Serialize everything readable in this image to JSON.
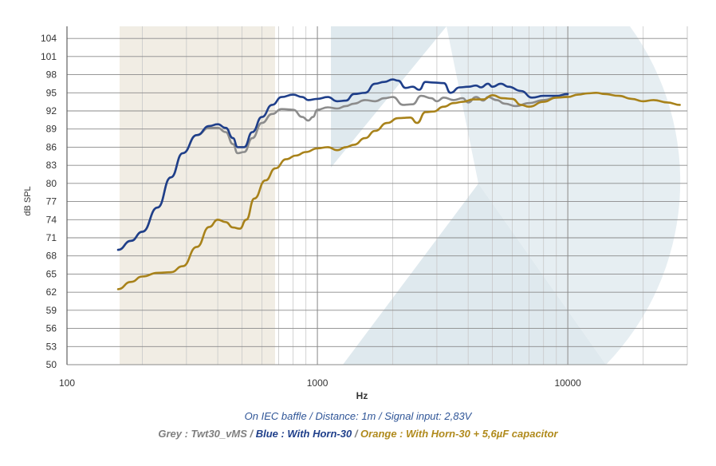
{
  "chart_data": {
    "type": "line",
    "title": "",
    "xlabel": "Hz",
    "ylabel": "dB SPL",
    "x_scale": "log",
    "xlim": [
      100,
      30000
    ],
    "ylim": [
      50,
      106
    ],
    "x_ticks": [
      "100",
      "1000",
      "10000"
    ],
    "x_tick_values": [
      100,
      1000,
      10000
    ],
    "y_ticks": [
      50,
      53,
      56,
      59,
      62,
      65,
      68,
      71,
      74,
      77,
      80,
      83,
      86,
      89,
      92,
      95,
      98,
      101,
      104
    ],
    "grid": true,
    "legend": "none",
    "colors": {
      "grey": "#8c8c8c",
      "blue": "#1f3f8a",
      "orange": "#a8821a",
      "grid": "#c8c8c8",
      "axis": "#555555"
    },
    "series": [
      {
        "color": "#8c8c8c",
        "points": [
          [
            160,
            69
          ],
          [
            180,
            70.5
          ],
          [
            200,
            72
          ],
          [
            230,
            76
          ],
          [
            260,
            81
          ],
          [
            290,
            85
          ],
          [
            330,
            88
          ],
          [
            370,
            89.2
          ],
          [
            400,
            89.2
          ],
          [
            430,
            88.5
          ],
          [
            460,
            86.5
          ],
          [
            480,
            85
          ],
          [
            510,
            85.2
          ],
          [
            550,
            87.5
          ],
          [
            600,
            90
          ],
          [
            660,
            91.5
          ],
          [
            720,
            92.3
          ],
          [
            800,
            92.2
          ],
          [
            870,
            91
          ],
          [
            920,
            90.4
          ],
          [
            960,
            91
          ],
          [
            1000,
            92.2
          ],
          [
            1100,
            92.6
          ],
          [
            1200,
            92.4
          ],
          [
            1300,
            92.8
          ],
          [
            1400,
            93.2
          ],
          [
            1550,
            93.8
          ],
          [
            1700,
            93.6
          ],
          [
            1850,
            94.1
          ],
          [
            2000,
            94.3
          ],
          [
            2200,
            93
          ],
          [
            2400,
            93.1
          ],
          [
            2600,
            94.5
          ],
          [
            2850,
            94.1
          ],
          [
            3000,
            93.6
          ],
          [
            3200,
            94.2
          ],
          [
            3500,
            93.8
          ],
          [
            3800,
            94.1
          ],
          [
            4000,
            93.4
          ],
          [
            4300,
            94.3
          ],
          [
            4600,
            93.7
          ],
          [
            4800,
            94.3
          ],
          [
            5200,
            93.8
          ],
          [
            5600,
            93.2
          ],
          [
            6200,
            92.8
          ],
          [
            7000,
            93.3
          ],
          [
            8000,
            93.8
          ],
          [
            9000,
            94.2
          ],
          [
            10000,
            94.4
          ]
        ]
      },
      {
        "color": "#1f3f8a",
        "points": [
          [
            160,
            69
          ],
          [
            180,
            70.5
          ],
          [
            200,
            72
          ],
          [
            230,
            76
          ],
          [
            260,
            81
          ],
          [
            290,
            85
          ],
          [
            330,
            88
          ],
          [
            370,
            89.5
          ],
          [
            400,
            89.8
          ],
          [
            430,
            89.2
          ],
          [
            460,
            87.5
          ],
          [
            480,
            86
          ],
          [
            510,
            86
          ],
          [
            550,
            88.5
          ],
          [
            600,
            91
          ],
          [
            660,
            93
          ],
          [
            720,
            94.3
          ],
          [
            800,
            94.7
          ],
          [
            870,
            94.3
          ],
          [
            920,
            93.8
          ],
          [
            1000,
            94
          ],
          [
            1100,
            94.3
          ],
          [
            1200,
            93.6
          ],
          [
            1300,
            93.7
          ],
          [
            1400,
            94.8
          ],
          [
            1550,
            95
          ],
          [
            1700,
            96.5
          ],
          [
            1850,
            96.8
          ],
          [
            2000,
            97.2
          ],
          [
            2100,
            97
          ],
          [
            2250,
            95.8
          ],
          [
            2400,
            96
          ],
          [
            2550,
            95.5
          ],
          [
            2700,
            96.8
          ],
          [
            2900,
            96.7
          ],
          [
            3200,
            96.6
          ],
          [
            3400,
            95
          ],
          [
            3700,
            95.9
          ],
          [
            4000,
            96
          ],
          [
            4300,
            96.2
          ],
          [
            4500,
            95.9
          ],
          [
            4800,
            96.5
          ],
          [
            5000,
            96
          ],
          [
            5400,
            96.5
          ],
          [
            5800,
            96
          ],
          [
            6500,
            95.3
          ],
          [
            7200,
            94.2
          ],
          [
            8000,
            94.5
          ],
          [
            9000,
            94.5
          ],
          [
            10000,
            94.8
          ]
        ]
      },
      {
        "color": "#a8821a",
        "points": [
          [
            160,
            62.5
          ],
          [
            180,
            63.7
          ],
          [
            200,
            64.6
          ],
          [
            230,
            65.2
          ],
          [
            260,
            65.3
          ],
          [
            290,
            66.3
          ],
          [
            330,
            69.5
          ],
          [
            370,
            72.8
          ],
          [
            400,
            74
          ],
          [
            430,
            73.6
          ],
          [
            460,
            72.7
          ],
          [
            490,
            72.5
          ],
          [
            520,
            74
          ],
          [
            560,
            77.5
          ],
          [
            620,
            80.5
          ],
          [
            680,
            82.5
          ],
          [
            750,
            84
          ],
          [
            820,
            84.6
          ],
          [
            900,
            85.2
          ],
          [
            1000,
            85.8
          ],
          [
            1100,
            86
          ],
          [
            1200,
            85.5
          ],
          [
            1300,
            86
          ],
          [
            1400,
            86.4
          ],
          [
            1550,
            87.5
          ],
          [
            1700,
            88.7
          ],
          [
            1900,
            90
          ],
          [
            2100,
            90.8
          ],
          [
            2350,
            90.9
          ],
          [
            2500,
            90
          ],
          [
            2700,
            91.8
          ],
          [
            2900,
            91.9
          ],
          [
            3200,
            92.7
          ],
          [
            3500,
            93.3
          ],
          [
            3800,
            93.5
          ],
          [
            4200,
            93.9
          ],
          [
            4600,
            93.9
          ],
          [
            5000,
            94.6
          ],
          [
            5500,
            94.1
          ],
          [
            6000,
            94
          ],
          [
            6500,
            93
          ],
          [
            7000,
            92.7
          ],
          [
            8000,
            93.5
          ],
          [
            9000,
            94.2
          ],
          [
            10000,
            94.3
          ],
          [
            11000,
            94.7
          ],
          [
            12000,
            94.9
          ],
          [
            13000,
            95
          ],
          [
            14000,
            94.8
          ],
          [
            16000,
            94.5
          ],
          [
            18000,
            94
          ],
          [
            20000,
            93.6
          ],
          [
            22000,
            93.8
          ],
          [
            25000,
            93.4
          ],
          [
            28000,
            93
          ]
        ]
      }
    ]
  },
  "caption": {
    "line1": "On IEC baffle / Distance: 1m / Signal input: 2,83V",
    "grey_text": "Grey : Twt30_vMS / ",
    "blue_text": "Blue : With Horn-30",
    "sep_text": " / ",
    "orange_text": "Orange : With Horn-30 + 5,6µF capacitor"
  }
}
